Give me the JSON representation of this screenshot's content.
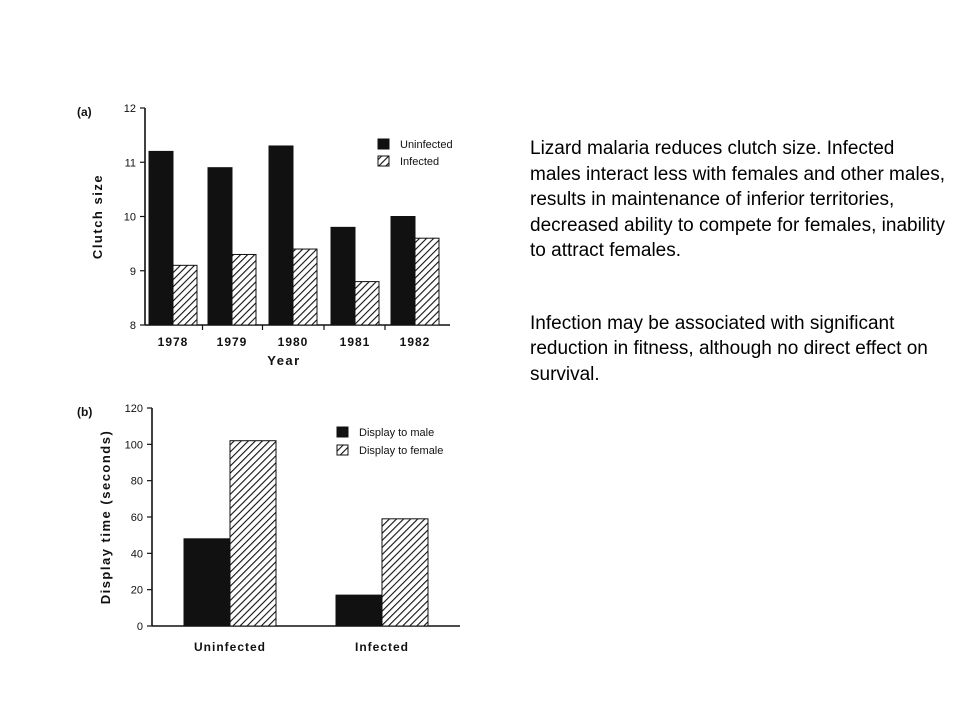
{
  "paragraphs": [
    "Lizard malaria reduces clutch size. Infected males interact less with females and other males, results in maintenance of inferior territories, decreased ability to compete for females, inability to attract females.",
    "Infection may be associated with significant reduction in fitness, although no direct effect on survival."
  ],
  "colors": {
    "bar_solid": "#111111",
    "bar_hatched": "#ffffff",
    "axis": "#111111"
  },
  "chart_data": [
    {
      "type": "bar",
      "panel_label": "(a)",
      "categories": [
        "1978",
        "1979",
        "1980",
        "1981",
        "1982"
      ],
      "series": [
        {
          "name": "Uninfected",
          "values": [
            11.2,
            10.9,
            11.3,
            9.8,
            10.0
          ],
          "fill": "solid"
        },
        {
          "name": "Infected",
          "values": [
            9.1,
            9.3,
            9.4,
            8.8,
            9.6
          ],
          "fill": "hatched"
        }
      ],
      "xlabel": "Year",
      "ylabel": "Clutch size",
      "ylim": [
        8,
        12
      ],
      "yticks": [
        8,
        9,
        10,
        11,
        12
      ],
      "legend_position": "top-right",
      "grid": false
    },
    {
      "type": "bar",
      "panel_label": "(b)",
      "categories": [
        "Uninfected",
        "Infected"
      ],
      "series": [
        {
          "name": "Display to male",
          "values": [
            48,
            17
          ],
          "fill": "solid"
        },
        {
          "name": "Display to female",
          "values": [
            102,
            59
          ],
          "fill": "hatched"
        }
      ],
      "xlabel": "",
      "ylabel": "Display time (seconds)",
      "ylim": [
        0,
        120
      ],
      "yticks": [
        0,
        20,
        40,
        60,
        80,
        100,
        120
      ],
      "legend_position": "top-right",
      "grid": false
    }
  ]
}
